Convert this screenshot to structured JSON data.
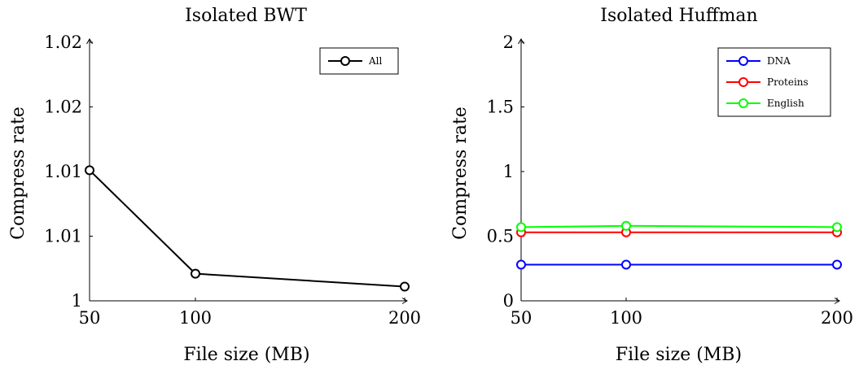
{
  "chart_data": [
    {
      "type": "line",
      "title": "Isolated BWT",
      "xlabel": "File size (MB)",
      "ylabel": "Compress rate",
      "x": [
        50,
        100,
        200
      ],
      "x_ticks": [
        "50",
        "100",
        "200"
      ],
      "ylim": [
        1.0,
        1.02
      ],
      "y_ticks": [
        1.0,
        1.005,
        1.01,
        1.015,
        1.02
      ],
      "y_tick_labels": [
        "1",
        "1.01",
        "1.01",
        "1.02",
        "1.02"
      ],
      "legend_position": "top-right",
      "grid": false,
      "series": [
        {
          "name": "All",
          "color": "#000000",
          "values": [
            1.0101,
            1.0021,
            1.0011
          ]
        }
      ]
    },
    {
      "type": "line",
      "title": "Isolated Huffman",
      "xlabel": "File size (MB)",
      "ylabel": "Compress rate",
      "x": [
        50,
        100,
        200
      ],
      "x_ticks": [
        "50",
        "100",
        "200"
      ],
      "ylim": [
        0,
        2
      ],
      "y_ticks": [
        0,
        0.5,
        1,
        1.5,
        2
      ],
      "y_tick_labels": [
        "0",
        "0.5",
        "1",
        "1.5",
        "2"
      ],
      "legend_position": "top-right",
      "grid": false,
      "series": [
        {
          "name": "DNA",
          "color": "#0000ff",
          "values": [
            0.28,
            0.28,
            0.28
          ]
        },
        {
          "name": "Proteins",
          "color": "#ff0000",
          "values": [
            0.53,
            0.53,
            0.53
          ]
        },
        {
          "name": "English",
          "color": "#00ff00",
          "values": [
            0.57,
            0.58,
            0.57
          ]
        }
      ]
    }
  ]
}
